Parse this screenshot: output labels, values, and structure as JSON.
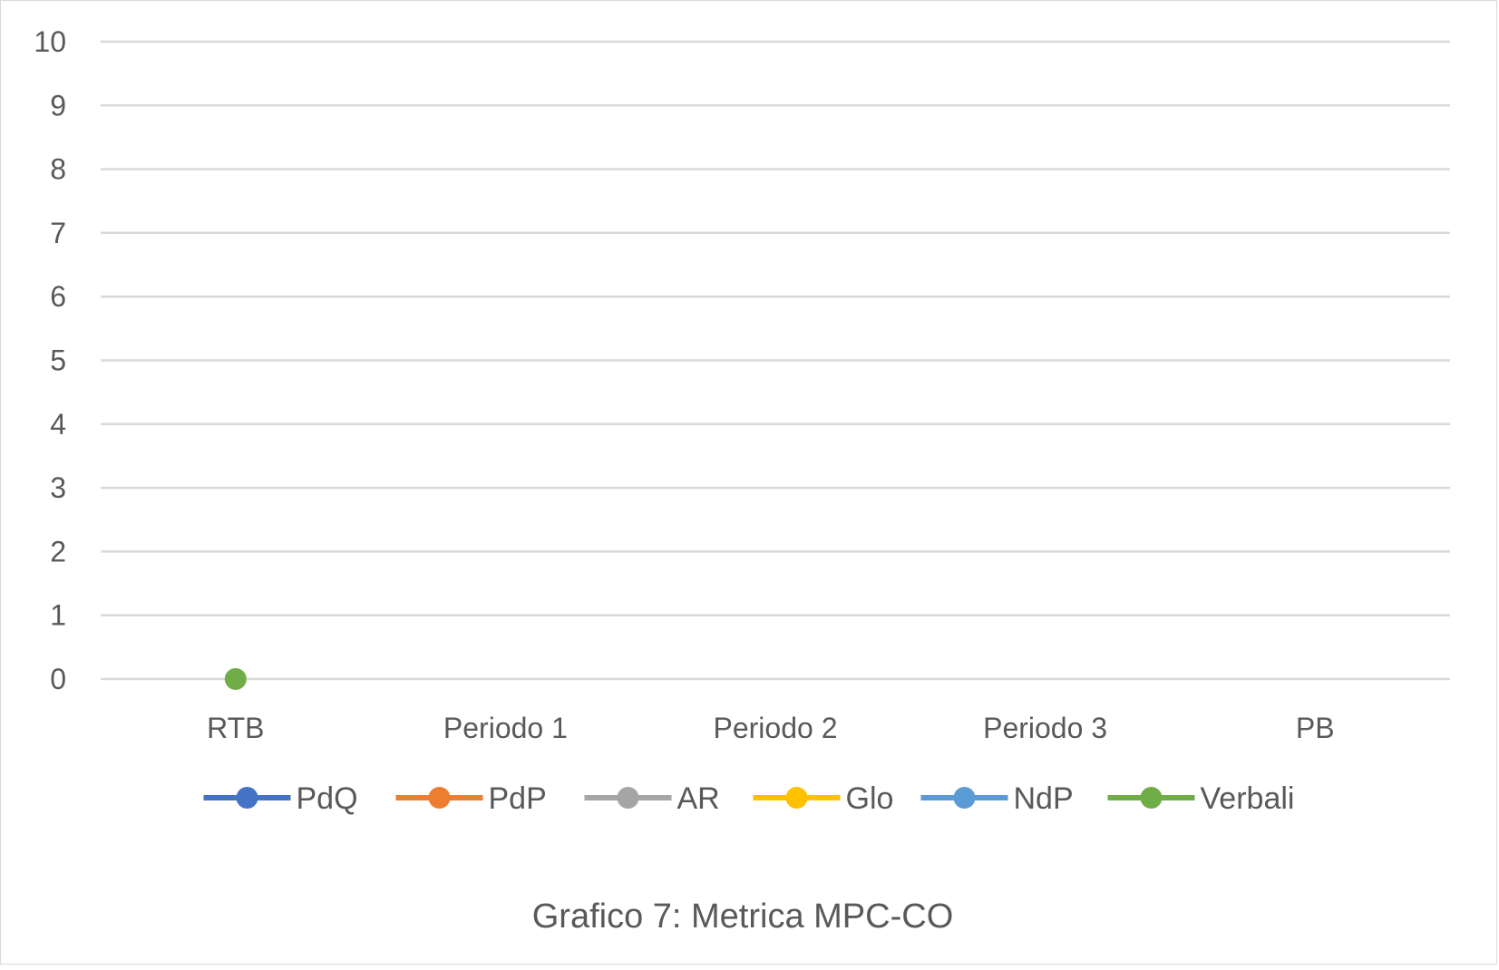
{
  "chart_data": {
    "type": "line",
    "categories": [
      "RTB",
      "Periodo 1",
      "Periodo 2",
      "Periodo 3",
      "PB"
    ],
    "ylim": [
      0,
      10
    ],
    "yticks": [
      0,
      1,
      2,
      3,
      4,
      5,
      6,
      7,
      8,
      9,
      10
    ],
    "grid": true,
    "legend_position": "bottom",
    "series": [
      {
        "name": "PdQ",
        "color": "#4472c4",
        "values": [
          null,
          null,
          null,
          null,
          null
        ]
      },
      {
        "name": "PdP",
        "color": "#ed7d31",
        "values": [
          null,
          null,
          null,
          null,
          null
        ]
      },
      {
        "name": "AR",
        "color": "#a5a5a5",
        "values": [
          null,
          null,
          null,
          null,
          null
        ]
      },
      {
        "name": "Glo",
        "color": "#ffc000",
        "values": [
          null,
          null,
          null,
          null,
          null
        ]
      },
      {
        "name": "NdP",
        "color": "#5b9bd5",
        "values": [
          null,
          null,
          null,
          null,
          null
        ]
      },
      {
        "name": "Verbali",
        "color": "#70ad47",
        "values": [
          0,
          null,
          null,
          null,
          null
        ]
      }
    ],
    "caption": "Grafico 7: Metrica MPC-CO"
  }
}
